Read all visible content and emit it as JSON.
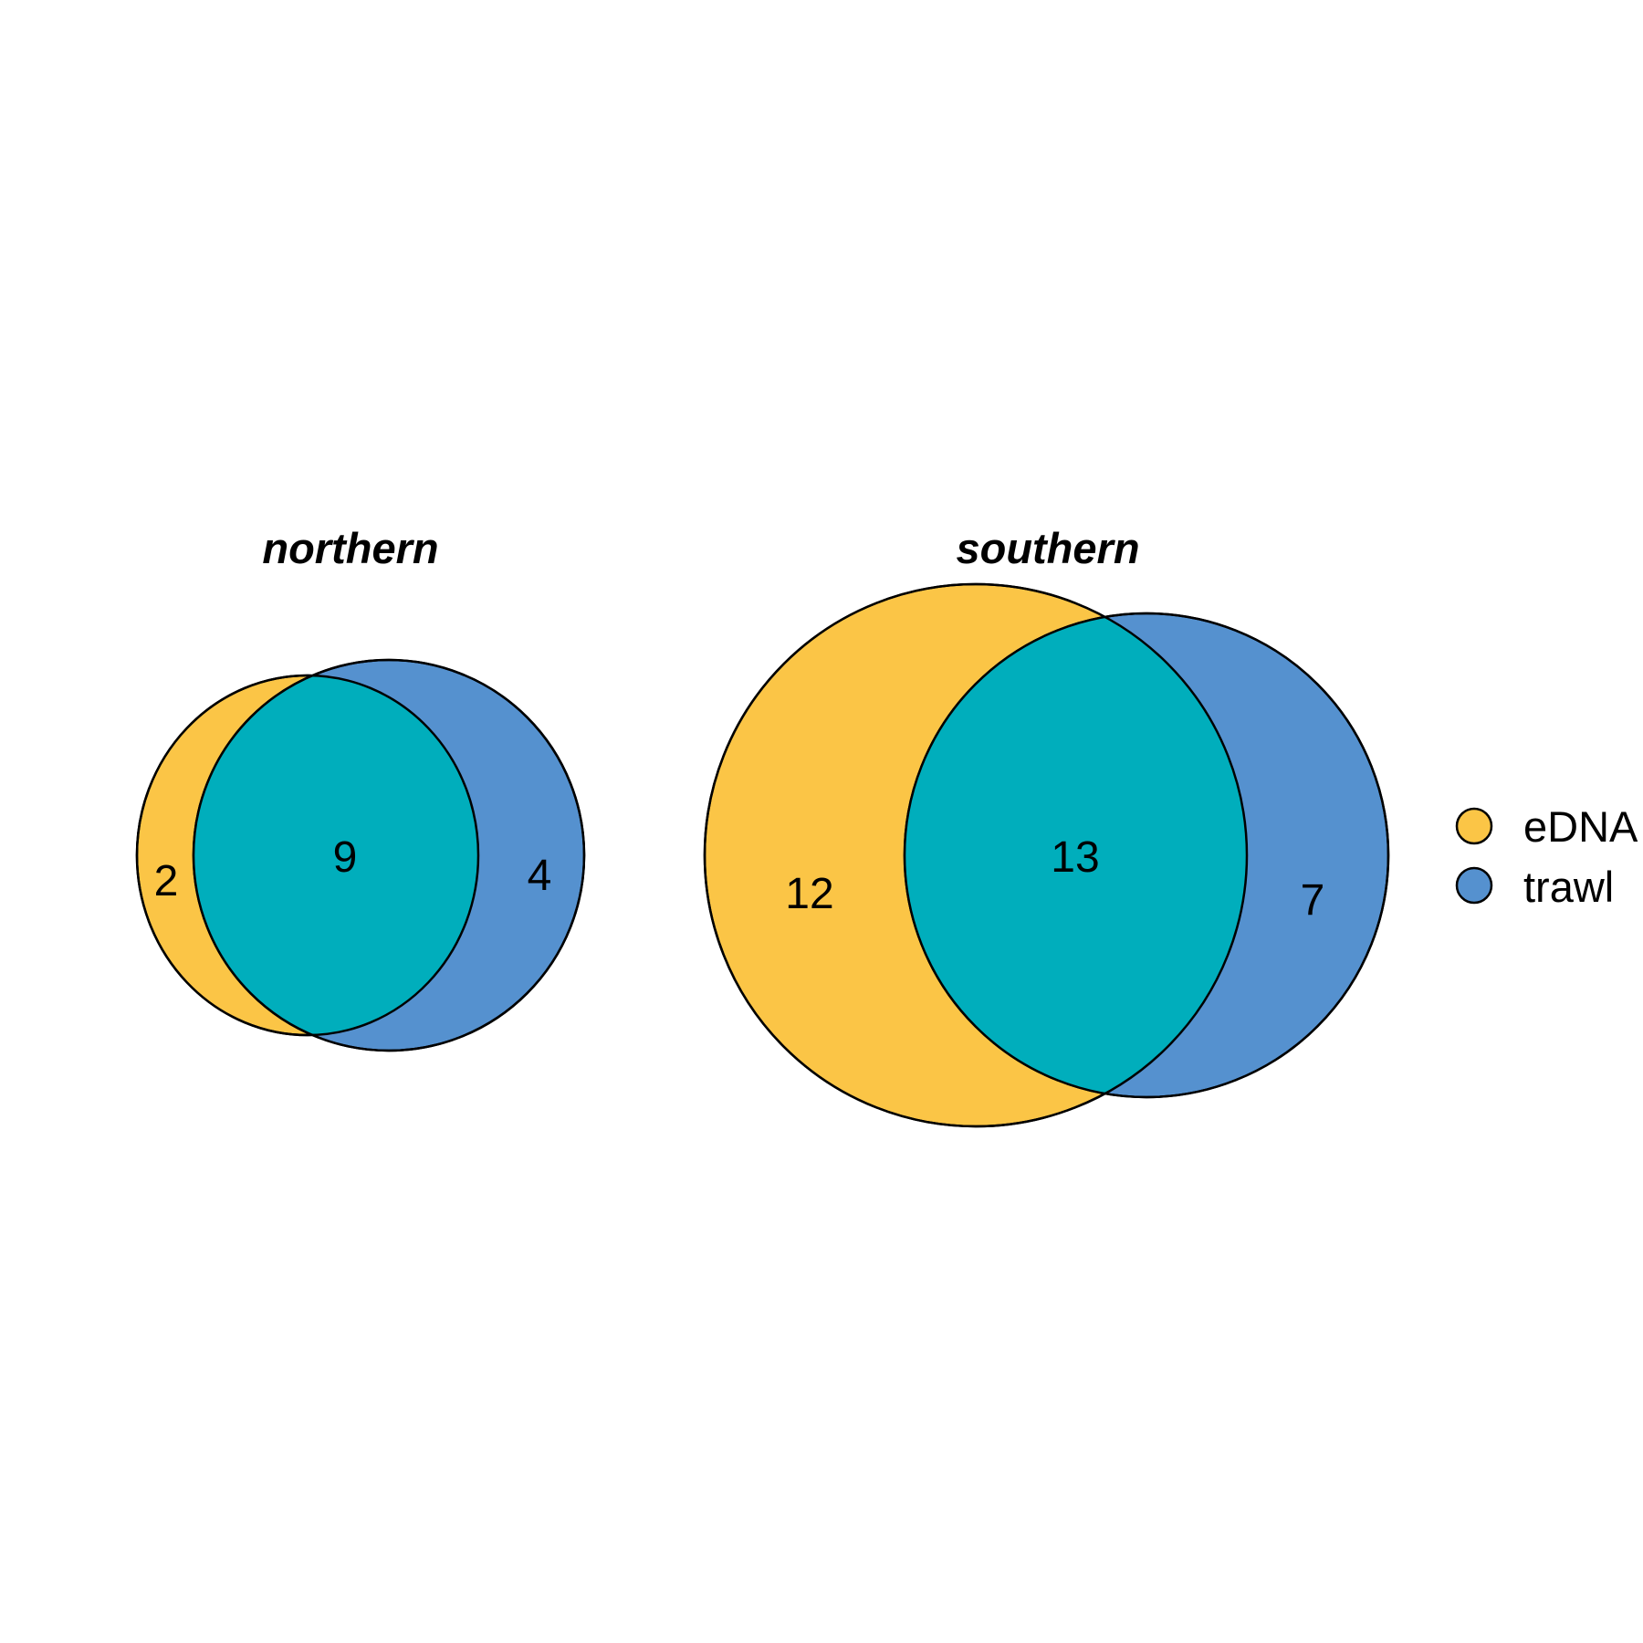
{
  "legend": {
    "items": [
      {
        "label": "eDNA",
        "color": "#FBC546"
      },
      {
        "label": "trawl",
        "color": "#5591CF"
      }
    ]
  },
  "overlap_color": "#00AEBC",
  "panels": [
    {
      "title": "northern",
      "edna_only": "2",
      "shared": "9",
      "trawl_only": "4"
    },
    {
      "title": "southern",
      "edna_only": "12",
      "shared": "13",
      "trawl_only": "7"
    }
  ]
}
